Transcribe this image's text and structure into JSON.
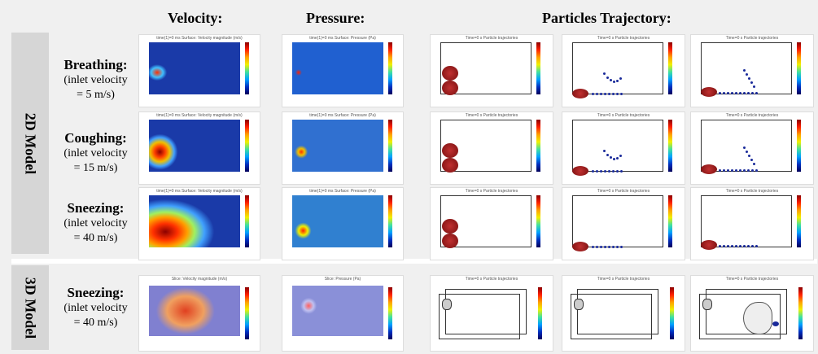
{
  "columns": {
    "velocity": "Velocity:",
    "pressure": "Pressure:",
    "trajectory": "Particles Trajectory:"
  },
  "sections": {
    "model_2d": "2D Model",
    "model_3d": "3D Model"
  },
  "rows": [
    {
      "title": "Breathing:",
      "line1": "(inlet velocity",
      "line2": "= 5 m/s)"
    },
    {
      "title": "Coughing:",
      "line1": "(inlet velocity",
      "line2": "= 15 m/s)"
    },
    {
      "title": "Sneezing:",
      "line1": "(inlet velocity",
      "line2": "= 40 m/s)"
    },
    {
      "title": "Sneezing:",
      "line1": "(inlet velocity",
      "line2": "= 40 m/s)"
    }
  ],
  "panel_titles": {
    "velocity_2d": "time(1)=0 ms   Surface: Velocity magnitude (m/s)",
    "pressure_2d": "time(1)=0 ms   Surface: Pressure (Pa)",
    "trajectory_2d": "Time=0 s   Particle trajectories",
    "velocity_3d": "Slice: Velocity magnitude (m/s)",
    "pressure_3d": "Slice: Pressure (Pa)",
    "trajectory_3d": "Time=0 s   Particle trajectories"
  },
  "colors": {
    "field_low": "#1a3aa8",
    "field_high": "#8b0000",
    "particle": "#7a1010",
    "side_band": "#d6d6d6"
  }
}
